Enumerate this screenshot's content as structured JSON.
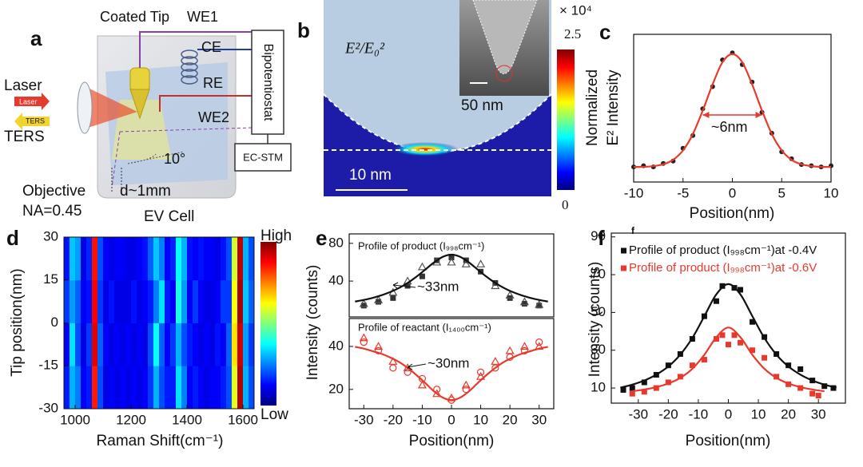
{
  "panel_a": {
    "label": "a",
    "coated_tip": "Coated Tip",
    "we1": "WE1",
    "ce": "CE",
    "re": "RE",
    "we2": "WE2",
    "bipotentiostat": "Bipotentiostat",
    "ec_stm": "EC-STM",
    "laser": "Laser",
    "laser_arrow": "Laser",
    "ters_arrow": "TERS",
    "ters": "TERS",
    "angle": "10°",
    "objective": "Objective",
    "na": "NA=0.45",
    "distance": "d~1mm",
    "cell": "EV Cell"
  },
  "panel_b": {
    "label": "b",
    "quantity": "E²/E₀²",
    "inset_scale": "50 nm",
    "scale_bar": "10 nm",
    "colorbar_multiplier": "× 10⁴",
    "colorbar_max": "2.5",
    "colorbar_min": "0"
  },
  "chart_data": [
    {
      "type": "scatter",
      "label": "c",
      "xlabel": "Position(nm)",
      "ylabel": [
        "Normalized",
        "E² Intensity"
      ],
      "xlim": [
        -10,
        10
      ],
      "ylim": [
        -0.1,
        1.17
      ],
      "xticks": [
        -10,
        -5,
        0,
        5,
        10
      ],
      "annotations": [
        "~6nm"
      ],
      "series": [
        {
          "mode": "markers",
          "marker": "dot",
          "color": "#222222",
          "x": [
            -10,
            -9,
            -8,
            -7,
            -6,
            -5,
            -4,
            -3,
            -2,
            -1,
            0,
            1,
            2,
            3,
            4,
            5,
            6,
            7,
            8,
            9,
            10
          ],
          "values": [
            0.03,
            0.04,
            0.03,
            0.06,
            0.08,
            0.19,
            0.3,
            0.53,
            0.72,
            0.95,
            1.01,
            0.91,
            0.76,
            0.5,
            0.32,
            0.16,
            0.1,
            0.05,
            0.04,
            0.03,
            0.04
          ]
        },
        {
          "mode": "line",
          "color": "#e8392c",
          "x": [
            -10,
            -9,
            -8,
            -7,
            -6,
            -5,
            -4,
            -3,
            -2,
            -1,
            0,
            1,
            2,
            3,
            4,
            5,
            6,
            7,
            8,
            9,
            10
          ],
          "values": [
            0.03,
            0.03,
            0.037,
            0.052,
            0.091,
            0.172,
            0.313,
            0.515,
            0.74,
            0.93,
            1,
            0.93,
            0.74,
            0.515,
            0.313,
            0.172,
            0.091,
            0.052,
            0.037,
            0.03,
            0.03
          ]
        }
      ]
    },
    {
      "type": "heatmap",
      "label": "d",
      "xlabel": "Raman Shift(cm⁻¹)",
      "ylabel": "Tip position(nm)",
      "xlim": [
        960,
        1640
      ],
      "ylim": [
        -30,
        30
      ],
      "xticks": [
        1000,
        1200,
        1400,
        1600
      ],
      "yticks": [
        -30,
        -15,
        0,
        15,
        30
      ],
      "zlim": [
        0,
        1
      ],
      "colorbar_labels": [
        "High",
        "Low"
      ],
      "x": [
        970,
        990,
        1010,
        1030,
        1050,
        1070,
        1090,
        1110,
        1130,
        1150,
        1170,
        1190,
        1210,
        1230,
        1250,
        1270,
        1290,
        1310,
        1330,
        1350,
        1370,
        1390,
        1410,
        1430,
        1450,
        1470,
        1490,
        1510,
        1530,
        1550,
        1570,
        1590,
        1610,
        1630
      ],
      "y": [
        -22.5,
        -7.5,
        7.5,
        22.5
      ],
      "z": [
        [
          0.15,
          0.3,
          0.25,
          0.12,
          0.15,
          0.85,
          0.2,
          0.1,
          0.12,
          0.1,
          0.12,
          0.1,
          0.12,
          0.1,
          0.12,
          0.18,
          0.3,
          0.2,
          0.15,
          0.15,
          0.35,
          0.25,
          0.12,
          0.15,
          0.12,
          0.1,
          0.12,
          0.12,
          0.15,
          0.2,
          0.6,
          0.95,
          0.3,
          0.2
        ],
        [
          0.12,
          0.35,
          0.2,
          0.1,
          0.18,
          0.9,
          0.22,
          0.12,
          0.1,
          0.12,
          0.1,
          0.12,
          0.1,
          0.12,
          0.1,
          0.2,
          0.38,
          0.22,
          0.12,
          0.18,
          0.3,
          0.2,
          0.15,
          0.12,
          0.1,
          0.12,
          0.1,
          0.14,
          0.12,
          0.22,
          0.65,
          0.92,
          0.28,
          0.18
        ],
        [
          0.18,
          0.28,
          0.22,
          0.12,
          0.14,
          0.88,
          0.18,
          0.1,
          0.14,
          0.1,
          0.1,
          0.1,
          0.14,
          0.1,
          0.12,
          0.15,
          0.25,
          0.35,
          0.15,
          0.12,
          0.4,
          0.28,
          0.12,
          0.18,
          0.12,
          0.1,
          0.1,
          0.12,
          0.18,
          0.18,
          0.62,
          0.96,
          0.32,
          0.22
        ],
        [
          0.14,
          0.32,
          0.28,
          0.1,
          0.16,
          0.86,
          0.2,
          0.12,
          0.1,
          0.12,
          0.12,
          0.1,
          0.1,
          0.12,
          0.14,
          0.22,
          0.32,
          0.25,
          0.12,
          0.16,
          0.38,
          0.3,
          0.14,
          0.12,
          0.14,
          0.12,
          0.12,
          0.1,
          0.14,
          0.2,
          0.58,
          0.94,
          0.3,
          0.2
        ]
      ]
    },
    {
      "type": "scatter",
      "label": "e",
      "xlim": [
        -35,
        35
      ],
      "ylim": [
        2,
        90
      ],
      "yticks": [
        40,
        80
      ],
      "annotations": [
        "Profile of product (I₉₉₈cm⁻¹)",
        "~33nm"
      ],
      "series": [
        {
          "mode": "markers",
          "marker": "square",
          "color": "#333333",
          "x": [
            -30,
            -25,
            -20,
            -15,
            -10,
            -5,
            0,
            5,
            10,
            15,
            20,
            25,
            30
          ],
          "values": [
            14,
            18,
            22,
            35,
            45,
            62,
            65,
            62,
            50,
            38,
            22,
            16,
            14
          ]
        },
        {
          "mode": "markers",
          "marker": "triangle",
          "color": "#555555",
          "x": [
            -30,
            -25,
            -20,
            -15,
            -10,
            -5,
            0,
            5,
            10,
            15,
            20,
            25,
            30
          ],
          "values": [
            16,
            20,
            28,
            40,
            55,
            60,
            60,
            58,
            58,
            35,
            25,
            18,
            15
          ]
        },
        {
          "mode": "line",
          "color": "#111111",
          "x": [
            -33,
            -30,
            -27,
            -24,
            -21,
            -18,
            -15,
            -12,
            -9,
            -6,
            -3,
            0,
            3,
            6,
            9,
            12,
            15,
            18,
            21,
            24,
            27,
            30,
            33
          ],
          "values": [
            18.3,
            20,
            22.2,
            24.9,
            28.3,
            32.6,
            38,
            44.6,
            52.1,
            59.7,
            65.7,
            68,
            65.7,
            59.7,
            52.1,
            44.6,
            38,
            32.6,
            28.3,
            24.9,
            22.2,
            20,
            18.3
          ]
        }
      ]
    },
    {
      "type": "scatter",
      "xlabel": "Position(nm)",
      "ylabel": "Intensity (counts)",
      "xlim": [
        -35,
        35
      ],
      "ylim": [
        11,
        53
      ],
      "xticks": [
        -30,
        -20,
        -10,
        0,
        10,
        20,
        30
      ],
      "yticks": [
        20,
        40
      ],
      "annotations": [
        "Profile of reactant (I₁₄₀₀cm⁻¹)",
        "~30nm"
      ],
      "series": [
        {
          "mode": "markers",
          "marker": "circle",
          "color": "#e8392c",
          "x": [
            -30,
            -25,
            -20,
            -15,
            -10,
            -5,
            0,
            5,
            10,
            15,
            20,
            25,
            30
          ],
          "values": [
            42,
            38,
            30,
            28,
            25,
            20,
            15,
            20,
            28,
            30,
            35,
            38,
            42
          ]
        },
        {
          "mode": "markers",
          "marker": "triangle",
          "color": "#e8392c",
          "x": [
            -30,
            -25,
            -20,
            -15,
            -10,
            -5,
            0,
            5,
            10,
            15,
            20,
            25,
            30
          ],
          "values": [
            44,
            40,
            33,
            30,
            22,
            18,
            16,
            22,
            26,
            33,
            38,
            40,
            40
          ]
        },
        {
          "mode": "line",
          "color": "#e8392c",
          "x": [
            -33,
            -30,
            -27,
            -24,
            -21,
            -18,
            -15,
            -12,
            -9,
            -6,
            -3,
            0,
            3,
            6,
            9,
            12,
            15,
            18,
            21,
            24,
            27,
            30,
            33
          ],
          "values": [
            39.8,
            39,
            37.8,
            36.6,
            34.9,
            32.8,
            30,
            26.7,
            23,
            19.1,
            16.2,
            15,
            16.2,
            19.1,
            23,
            26.7,
            30,
            32.8,
            34.9,
            36.6,
            37.8,
            39,
            39.8
          ]
        }
      ]
    },
    {
      "type": "scatter",
      "label": "f",
      "corner_mark": "f",
      "xlabel": "Position(nm)",
      "ylabel": "Intensity (counts)",
      "xlim": [
        -39,
        39
      ],
      "ylim": [
        2,
        92
      ],
      "xticks": [
        -30,
        -20,
        -10,
        0,
        10,
        20,
        30
      ],
      "yticks": [
        10,
        30,
        50,
        70,
        90
      ],
      "series": [
        {
          "name": "Profile of product (I₉₉₈cm⁻¹)at -0.4V",
          "mode": "markers",
          "marker": "square",
          "color": "#111111",
          "x": [
            -35,
            -32,
            -28,
            -24,
            -20,
            -16,
            -12,
            -8,
            -4,
            -2,
            2,
            4,
            8,
            12,
            16,
            20,
            24,
            28,
            32,
            35
          ],
          "values": [
            9,
            10,
            13,
            17,
            22,
            28,
            36,
            48,
            56,
            64,
            63,
            62,
            45,
            37,
            28,
            22,
            20,
            14,
            11,
            10
          ]
        },
        {
          "name": "Profile of product (I₉₉₈cm⁻¹)at -0.6V",
          "mode": "markers",
          "marker": "square",
          "color": "#e8392c",
          "x": [
            -32,
            -28,
            -24,
            -20,
            -16,
            -12,
            -8,
            -4,
            -2,
            0,
            2,
            4,
            8,
            12,
            16,
            20,
            24,
            28,
            30
          ],
          "values": [
            7,
            8,
            10,
            13,
            16,
            22,
            25,
            36,
            38,
            33,
            38,
            34,
            30,
            26,
            16,
            12,
            10,
            7,
            6
          ]
        },
        {
          "mode": "line",
          "color": "#111111",
          "x": [
            -36,
            -32,
            -28,
            -24,
            -20,
            -16,
            -12,
            -8,
            -4,
            0,
            4,
            8,
            12,
            16,
            20,
            24,
            28,
            32,
            36
          ],
          "values": [
            10.2,
            11.8,
            14,
            17.1,
            21.4,
            27.7,
            36.5,
            48,
            59.6,
            65,
            59.6,
            48,
            36.5,
            27.7,
            21.4,
            17.1,
            14,
            11.8,
            10.2
          ]
        },
        {
          "mode": "line",
          "color": "#e8392c",
          "x": [
            -32,
            -28,
            -24,
            -20,
            -16,
            -12,
            -8,
            -4,
            0,
            4,
            8,
            12,
            16,
            20,
            24,
            28,
            32
          ],
          "values": [
            8.3,
            9.2,
            10.5,
            12.4,
            15.4,
            20.2,
            27.6,
            36.9,
            42,
            36.9,
            27.6,
            20.2,
            15.4,
            12.4,
            10.5,
            9.2,
            8.3
          ]
        }
      ]
    }
  ]
}
